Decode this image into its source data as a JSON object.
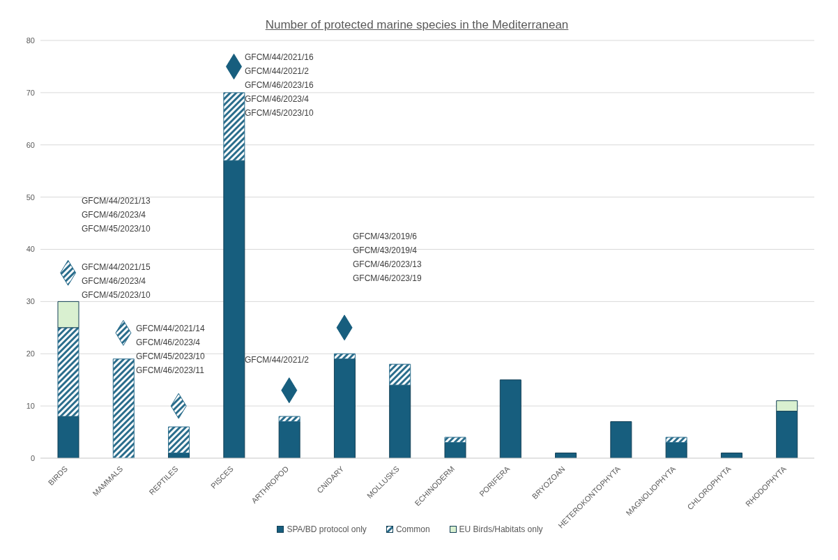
{
  "chart_data": {
    "type": "bar",
    "title": "Number of protected marine species in the Mediterranean",
    "categories": [
      "BIRDS",
      "MAMMALS",
      "REPTILES",
      "PISCES",
      "ARTHROPOD",
      "CNIDARY",
      "MOLLUSKS",
      "ECHINODERM",
      "PORIFERA",
      "BRYOZOAN",
      "HETEROKONTOPHYTA",
      "MAGNOLIOPHYTA",
      "CHLOROPHYTA",
      "RHODOPHYTA"
    ],
    "stacked": true,
    "series": [
      {
        "name": "SPA/BD protocol only",
        "color": "#175e7e",
        "values": [
          8,
          0,
          1,
          57,
          7,
          19,
          14,
          3,
          15,
          1,
          7,
          3,
          1,
          9
        ]
      },
      {
        "name": "Common",
        "color": "#2a6d8c",
        "values": [
          17,
          19,
          5,
          13,
          1,
          1,
          4,
          1,
          0,
          0,
          0,
          1,
          0,
          0
        ]
      },
      {
        "name": "EU Birds/Habitats only",
        "color": "#d9f0d0",
        "values": [
          5,
          0,
          0,
          0,
          0,
          0,
          0,
          0,
          0,
          0,
          0,
          0,
          0,
          2
        ]
      },
      {
        "type": "scatter",
        "color": "#2a6d8c",
        "x": [
          "BIRDS",
          "MAMMALS",
          "REPTILES"
        ],
        "values": [
          35.5,
          24,
          10
        ]
      },
      {
        "type": "scatter",
        "color": "#175e7e",
        "x": [
          "PISCES",
          "ARTHROPOD",
          "CNIDARY"
        ],
        "values": [
          75,
          13,
          25
        ]
      }
    ],
    "marker": "diamond",
    "ylim": [
      0,
      80
    ],
    "yticks": [
      0,
      10,
      20,
      30,
      40,
      50,
      60,
      70,
      80
    ],
    "grid": "y",
    "legend": "bottom",
    "annotations": [
      "GFCM/44/2021/13\nGFCM/46/2023/4\nGFCM/45/2023/10",
      "GFCM/44/2021/15\nGFCM/46/2023/4\nGFCM/45/2023/10",
      "GFCM/44/2021/14\nGFCM/46/2023/4\nGFCM/45/2023/10\nGFCM/46/2023/11",
      "GFCM/44/2021/16\nGFCM/44/2021/2\nGFCM/46/2023/16\nGFCM/46/2023/4\nGFCM/45/2023/10",
      "GFCM/44/2021/2",
      "GFCM/43/2019/6\nGFCM/43/2019/4\nGFCM/46/2023/13\nGFCM/46/2023/19"
    ]
  }
}
